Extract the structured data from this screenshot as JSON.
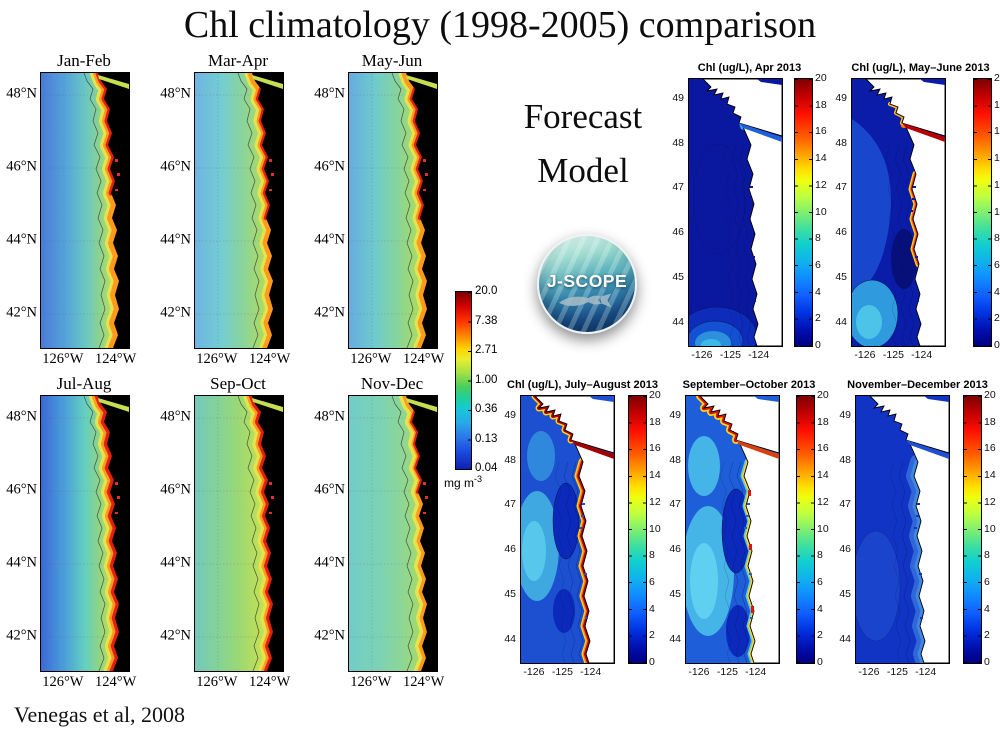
{
  "title": "Chl climatology (1998-2005) comparison",
  "attribution": "Venegas et al, 2008",
  "forecast": {
    "lines": [
      "Forecast",
      "Model"
    ]
  },
  "logo": {
    "text": "J-SCOPE"
  },
  "climatology": {
    "panel_labels": [
      "Jan-Feb",
      "Mar-Apr",
      "May-Jun",
      "Jul-Aug",
      "Sep-Oct",
      "Nov-Dec"
    ],
    "lat_ticks": [
      "48°N",
      "46°N",
      "44°N",
      "42°N"
    ],
    "lon_ticks": [
      "126°W",
      "124°W"
    ],
    "colorbar": {
      "ticks": [
        "20.0",
        "7.38",
        "2.71",
        "1.00",
        "0.36",
        "0.13",
        "0.04"
      ],
      "units_base": "mg m",
      "units_sup": "-3"
    }
  },
  "model": {
    "panel_titles": [
      "Chl (ug/L), Apr 2013",
      "Chl (ug/L), May–June 2013",
      "Chl (ug/L), July–August 2013",
      "September–October 2013",
      "November–December 2013"
    ],
    "lat_ticks": [
      "49",
      "48",
      "47",
      "46",
      "45",
      "44"
    ],
    "lon_ticks": [
      "-126",
      "-125",
      "-124"
    ],
    "colorbar_ticks": [
      "20",
      "18",
      "16",
      "14",
      "12",
      "10",
      "8",
      "6",
      "4",
      "2",
      "0"
    ]
  },
  "colors": {
    "jet_top": "#7f0000",
    "jet_bottom": "#00007f",
    "climatology_land": "#000000",
    "model_land": "#ffffff",
    "model_ocean_base": "#0a18a0",
    "coastal_high_chl": "#e02010"
  },
  "chart_data": [
    {
      "type": "heatmap",
      "title": "Chl climatology (1998-2005), bimonthly satellite maps (Venegas et al, 2008)",
      "panels": [
        "Jan-Feb",
        "Mar-Apr",
        "May-Jun",
        "Jul-Aug",
        "Sep-Oct",
        "Nov-Dec"
      ],
      "x_tick_labels": [
        "126°W",
        "124°W"
      ],
      "y_tick_labels": [
        "48°N",
        "46°N",
        "44°N",
        "42°N"
      ],
      "x_range_deg_west": [
        127,
        123.3
      ],
      "y_range_deg_north": [
        41,
        48.7
      ],
      "colorbar": {
        "units": "mg m-3",
        "scale": "logarithmic",
        "tick_values": [
          20.0,
          7.38,
          2.71,
          1.0,
          0.36,
          0.13,
          0.04
        ]
      },
      "pattern": "Offshore values 0.1-0.4 mg m-3 (blue), mid-shelf 1-3 (green-yellow), nearshore coastal band 7-20 (orange-red); coastal band strongest and widest in Jul-Aug and Sep-Oct, offshore most oligotrophic in Jan-Feb and Jul-Aug; land masked black."
    },
    {
      "type": "heatmap",
      "title": "J-SCOPE forecast model surface Chl (ug/L), 2013",
      "panels": [
        "Apr 2013",
        "May–June 2013",
        "July–August 2013",
        "September–October 2013",
        "November–December 2013"
      ],
      "x_tick_labels": [
        "-126",
        "-125",
        "-124"
      ],
      "y_tick_labels": [
        "49",
        "48",
        "47",
        "46",
        "45",
        "44"
      ],
      "x_range_deg": [
        -126.7,
        -123.4
      ],
      "y_range_deg": [
        43.4,
        49.6
      ],
      "colorbar": {
        "units": "ug/L",
        "scale": "linear",
        "min": 0,
        "max": 20,
        "tick_step": 2
      },
      "pattern_per_panel": [
        "Mostly <2 everywhere; 4-8 patch offshore near 44N; Strait of Juan de Fuca ~2-4",
        "Offshore 2-6 with 4-6 patch in southwest; 10-20 in Strait of Juan de Fuca and nearshore 46-47N",
        "Offshore 2-8; 18-20 along the entire coast, in the Strait of Juan de Fuca and northern inlets",
        "Offshore 4-8; 12-20 band along northern coast near 48.5-49N and nearshore spots to the south",
        "Mostly 1-4; slightly elevated 2-4 nearshore; no high-chl band"
      ]
    }
  ]
}
